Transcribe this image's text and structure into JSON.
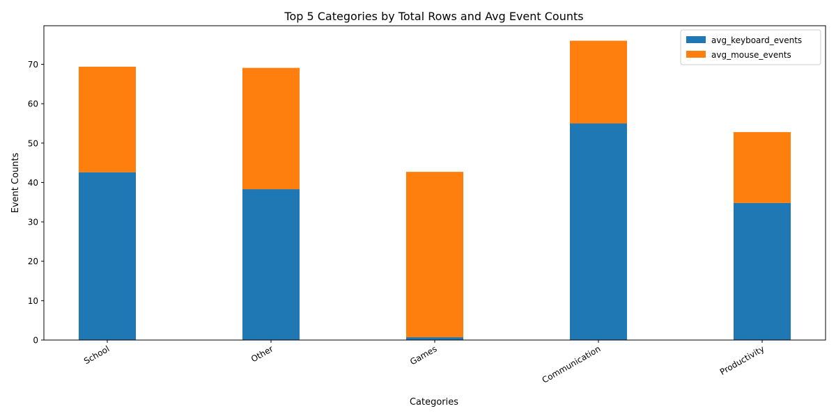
{
  "chart_data": {
    "type": "bar",
    "stacked": true,
    "title": "Top 5 Categories by Total Rows and Avg Event Counts",
    "xlabel": "Categories",
    "ylabel": "Event Counts",
    "categories": [
      "School",
      "Other",
      "Games",
      "Communication",
      "Productivity"
    ],
    "series": [
      {
        "name": "avg_keyboard_events",
        "color": "#1f77b4",
        "values": [
          42.6,
          38.3,
          0.7,
          55.0,
          34.8
        ]
      },
      {
        "name": "avg_mouse_events",
        "color": "#ff7f0e",
        "values": [
          26.8,
          30.8,
          42.0,
          21.0,
          18.0
        ]
      }
    ],
    "ylim": [
      0,
      79.8
    ],
    "yticks": [
      0,
      10,
      20,
      30,
      40,
      50,
      60,
      70
    ],
    "grid": false,
    "legend_position": "top-right"
  }
}
